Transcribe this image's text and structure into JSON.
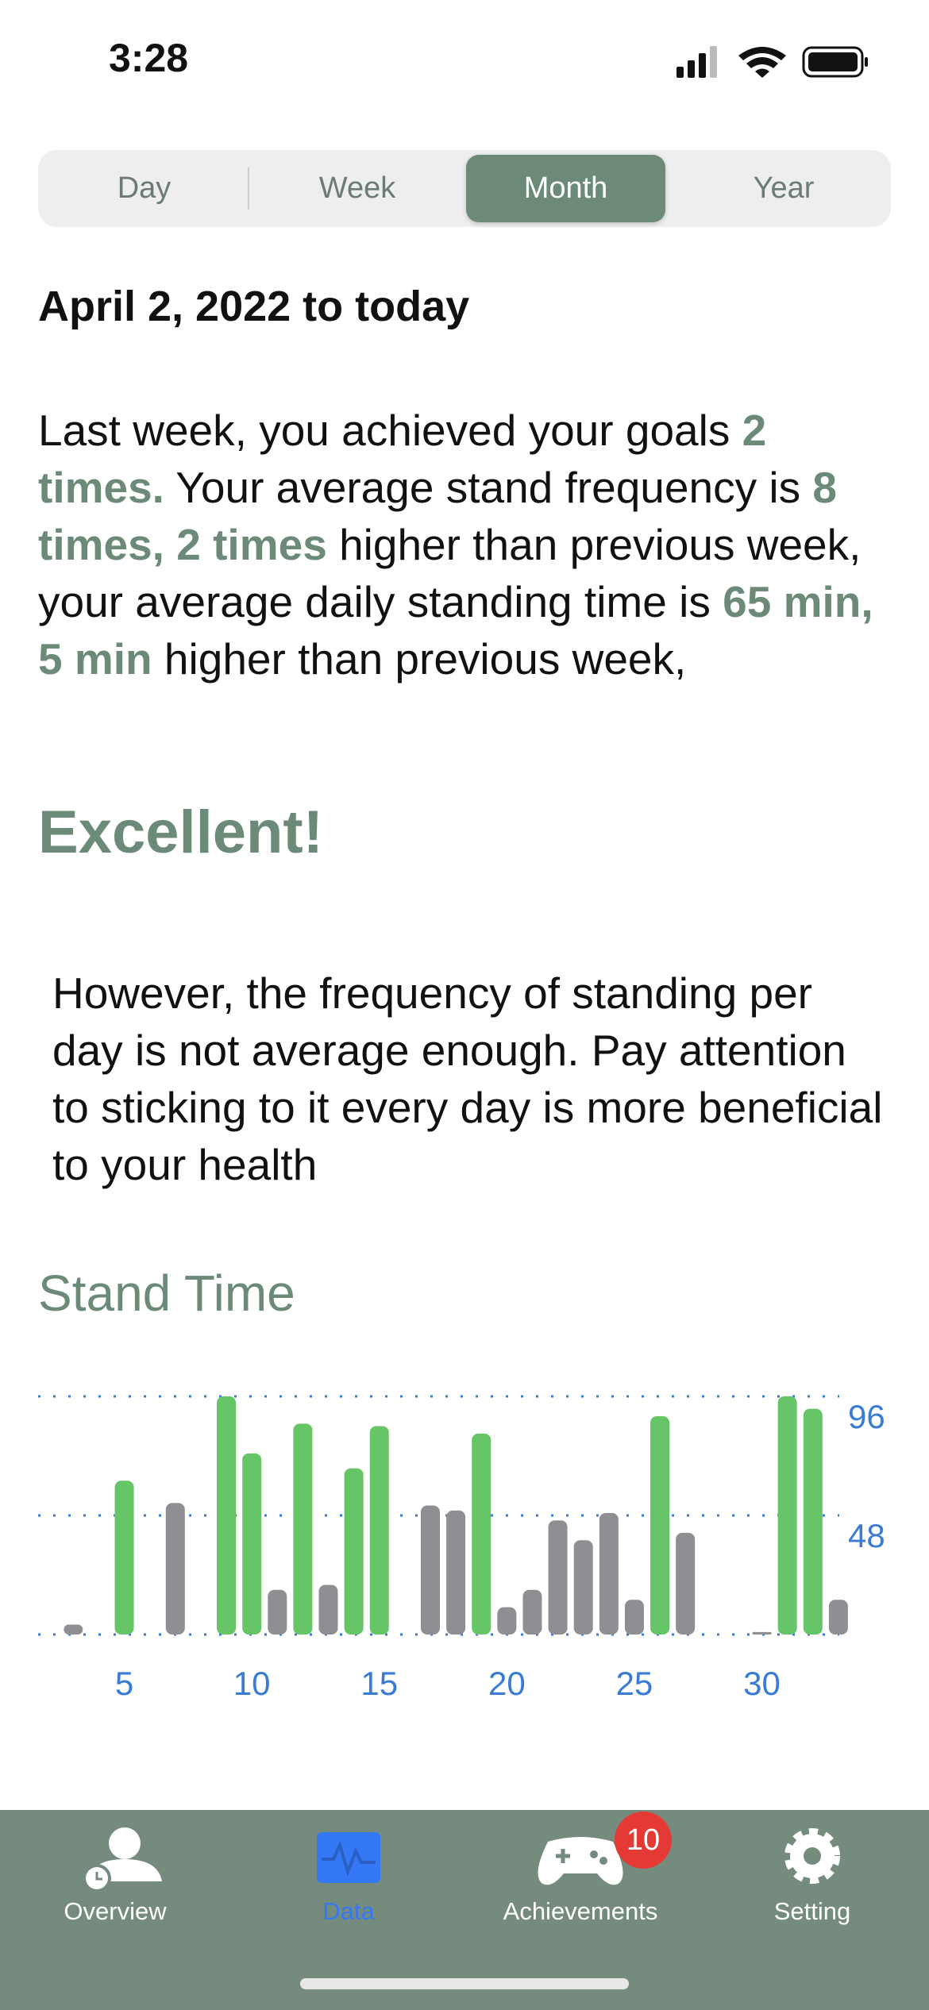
{
  "status_bar": {
    "time": "3:28"
  },
  "segmented": {
    "options": [
      "Day",
      "Week",
      "Month",
      "Year"
    ],
    "selected": 2
  },
  "date_range": "April 2, 2022  to today",
  "summary": [
    {
      "text": "Last week, you achieved your goals ",
      "highlight": false
    },
    {
      "text": "2 times.",
      "highlight": true
    },
    {
      "text": " Your average stand frequency is ",
      "highlight": false
    },
    {
      "text": "8 times, 2 times",
      "highlight": true
    },
    {
      "text": " higher than previous week, your average daily standing time is ",
      "highlight": false
    },
    {
      "text": "65 min, 5 min",
      "highlight": true
    },
    {
      "text": " higher than previous week,",
      "highlight": false
    }
  ],
  "rating": "Excellent!",
  "advice": "However, the frequency of standing per day is not average enough. Pay attention to sticking to it every day is more beneficial to your health",
  "chart_data": {
    "type": "bar",
    "title": "Stand Time",
    "categories": [
      null,
      null,
      null,
      null,
      "5",
      null,
      null,
      null,
      null,
      "10",
      null,
      null,
      null,
      null,
      "15",
      null,
      null,
      null,
      null,
      "20",
      null,
      null,
      null,
      null,
      "25",
      null,
      null,
      null,
      null,
      "30",
      null,
      null,
      null
    ],
    "values": [
      null,
      null,
      4,
      null,
      62,
      null,
      53,
      null,
      96,
      73,
      18,
      85,
      20,
      67,
      84,
      null,
      52,
      50,
      81,
      11,
      18,
      46,
      38,
      49,
      14,
      88,
      41,
      null,
      null,
      1,
      96,
      91,
      14
    ],
    "colors": [
      "#8e8e93",
      "#8e8e93",
      "#8e8e93",
      "#8e8e93",
      "#66c566",
      "#8e8e93",
      "#8e8e93",
      "#8e8e93",
      "#66c566",
      "#66c566",
      "#8e8e93",
      "#66c566",
      "#8e8e93",
      "#66c566",
      "#66c566",
      "#8e8e93",
      "#8e8e93",
      "#8e8e93",
      "#66c566",
      "#8e8e93",
      "#8e8e93",
      "#8e8e93",
      "#8e8e93",
      "#8e8e93",
      "#8e8e93",
      "#66c566",
      "#8e8e93",
      "#8e8e93",
      "#8e8e93",
      "#8e8e93",
      "#66c566",
      "#66c566",
      "#8e8e93"
    ],
    "ylim": [
      0,
      96
    ],
    "yticks": [
      48,
      96
    ],
    "grid": true
  },
  "tab_bar": {
    "items": [
      "Overview",
      "Data",
      "Achievements",
      "Setting"
    ],
    "active": 1,
    "badge": 10
  }
}
